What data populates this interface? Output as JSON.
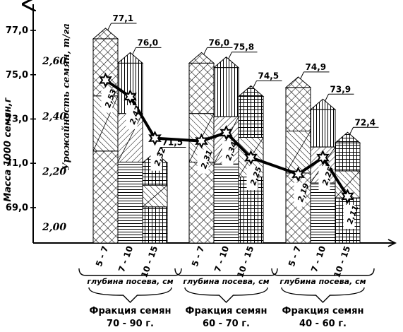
{
  "chart_data": {
    "type": "bar",
    "y_axis_left": {
      "title": "Масса 1000 семян,г",
      "ticks": [
        "77,0",
        "75,0",
        "73,0",
        "71,0",
        "69,0"
      ],
      "ylim": [
        67.4,
        77.8
      ]
    },
    "y_axis_secondary": {
      "title": "Урожайность семян, т/га",
      "ticks": [
        "2,60",
        "2,40",
        "2,20",
        "2,00"
      ],
      "ylim": [
        1.82,
        2.78
      ]
    },
    "depth_caption": "глубина посева, см",
    "groups": [
      {
        "label_line1": "Фракция семян",
        "label_line2": "70 - 90 г.",
        "categories": [
          "5 - 7",
          "7 - 10",
          "10 - 15"
        ],
        "mass": [
          77.1,
          76.0,
          71.5
        ],
        "mass_labels": [
          "77,1",
          "76,0",
          "71,5"
        ],
        "yield": [
          2.53,
          2.47,
          2.32
        ],
        "yield_labels": [
          "2,53",
          "2,47",
          "2,32"
        ]
      },
      {
        "label_line1": "Фракция семян",
        "label_line2": "60 - 70 г.",
        "categories": [
          "5 - 7",
          "7 - 10",
          "10 - 15"
        ],
        "mass": [
          76.0,
          75.8,
          74.5
        ],
        "mass_labels": [
          "76,0",
          "75,8",
          "74,5"
        ],
        "yield": [
          2.31,
          2.34,
          2.25
        ],
        "yield_labels": [
          "2,31",
          "2,34",
          "2,25"
        ]
      },
      {
        "label_line1": "Фракция семян",
        "label_line2": "40 - 60 г.",
        "categories": [
          "5 - 7",
          "7 - 10",
          "10 - 15"
        ],
        "mass": [
          74.9,
          73.9,
          72.4
        ],
        "mass_labels": [
          "74,9",
          "73,9",
          "72,4"
        ],
        "yield": [
          2.19,
          2.25,
          2.11
        ],
        "yield_labels": [
          "2,19",
          "2,25",
          "2,11"
        ]
      }
    ],
    "colors": {
      "ink": "#000000",
      "background": "#ffffff"
    }
  }
}
